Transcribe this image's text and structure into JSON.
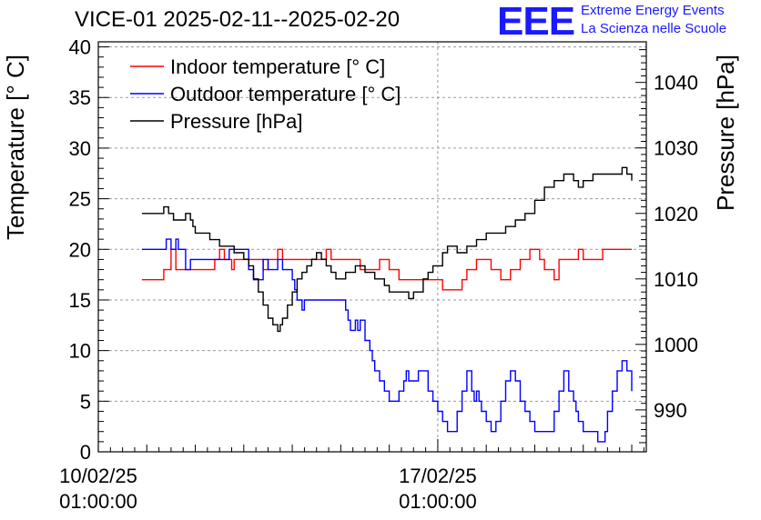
{
  "title": "VICE-01 2025-02-11--2025-02-20",
  "logo": {
    "mark": "EEE",
    "line1": "Extreme Energy Events",
    "line2": "La Scienza nelle Scuole",
    "color": "#1a1aff"
  },
  "chart_data": {
    "type": "line",
    "title": "VICE-01 2025-02-11--2025-02-20",
    "x_unit": "days since 10/02/25 01:00:00",
    "xlim": [
      0,
      11.3
    ],
    "x_ticks": [
      {
        "x": 0,
        "label": [
          "10/02/25",
          "01:00:00"
        ]
      },
      {
        "x": 7,
        "label": [
          "17/02/25",
          "01:00:00"
        ]
      }
    ],
    "ylabel": "Temperature [° C]",
    "ylim": [
      0,
      40.5
    ],
    "y_ticks": [
      0,
      5,
      10,
      15,
      20,
      25,
      30,
      35,
      40
    ],
    "y2label": "Pressure [hPa]",
    "y2lim": [
      983.6,
      1046.2
    ],
    "y2_ticks": [
      990,
      1000,
      1010,
      1020,
      1030,
      1040
    ],
    "grid": true,
    "legend_position": "top-left",
    "series": [
      {
        "name": "Indoor temperature [° C]",
        "color": "#ff0000",
        "axis": "left",
        "x": [
          0.9,
          1.2,
          1.35,
          1.5,
          1.6,
          2.3,
          2.4,
          2.5,
          2.6,
          2.75,
          2.8,
          3.2,
          3.4,
          3.5,
          3.7,
          3.8,
          4.5,
          4.7,
          4.8,
          5.2,
          5.4,
          5.6,
          5.8,
          6.0,
          6.1,
          6.2,
          6.5,
          6.6,
          6.8,
          7.1,
          7.2,
          7.5,
          7.6,
          7.8,
          8.1,
          8.3,
          8.5,
          8.7,
          8.9,
          9.1,
          9.2,
          9.4,
          9.5,
          9.9,
          10.0,
          10.3,
          10.4,
          10.9,
          11.0
        ],
        "y": [
          17,
          17,
          18,
          20,
          18,
          18,
          19,
          20,
          19,
          18,
          19,
          19,
          18,
          19,
          20,
          19,
          19,
          20,
          19,
          19,
          18,
          18,
          19,
          18,
          18,
          17,
          17,
          17,
          17,
          16,
          16,
          17,
          18,
          19,
          18,
          17,
          18,
          19,
          20,
          19,
          18,
          17,
          19,
          20,
          19,
          19,
          20,
          20,
          20
        ]
      },
      {
        "name": "Outdoor temperature [° C]",
        "color": "#0000ff",
        "axis": "left",
        "x": [
          0.9,
          1.3,
          1.4,
          1.5,
          1.6,
          1.65,
          1.8,
          1.9,
          2.0,
          2.5,
          2.7,
          3.0,
          3.1,
          3.2,
          3.4,
          3.5,
          3.7,
          3.8,
          4.0,
          4.05,
          4.1,
          4.2,
          4.25,
          4.3,
          4.4,
          4.7,
          5.0,
          5.1,
          5.15,
          5.2,
          5.3,
          5.35,
          5.4,
          5.5,
          5.6,
          5.65,
          5.7,
          5.8,
          5.9,
          6.0,
          6.1,
          6.2,
          6.3,
          6.35,
          6.4,
          6.5,
          6.6,
          6.8,
          6.9,
          7.0,
          7.1,
          7.2,
          7.3,
          7.4,
          7.5,
          7.6,
          7.7,
          7.75,
          7.8,
          7.85,
          7.9,
          8.0,
          8.1,
          8.2,
          8.3,
          8.4,
          8.5,
          8.6,
          8.7,
          8.8,
          8.9,
          9.0,
          9.1,
          9.3,
          9.4,
          9.5,
          9.6,
          9.7,
          9.8,
          9.85,
          9.9,
          10.0,
          10.1,
          10.2,
          10.3,
          10.4,
          10.45,
          10.5,
          10.6,
          10.7,
          10.8,
          10.9,
          11.0
        ],
        "y": [
          20,
          20,
          21,
          20,
          21,
          20,
          18,
          19,
          19,
          19,
          20,
          20,
          18,
          17,
          19,
          18,
          19,
          18,
          17,
          16,
          15,
          14,
          15,
          15,
          15,
          15,
          15,
          14,
          13,
          12,
          13,
          12,
          13,
          11,
          10,
          9,
          8,
          7,
          6,
          5,
          5,
          6,
          7,
          8,
          7,
          7,
          8,
          6,
          5,
          4,
          3,
          2,
          2,
          4,
          6,
          8,
          6,
          5,
          6,
          5,
          4,
          3,
          2,
          3,
          5,
          7,
          8,
          7,
          5,
          4,
          3,
          2,
          2,
          2,
          4,
          6,
          8,
          6,
          5,
          4,
          3,
          2,
          2,
          2,
          1,
          1,
          2,
          4,
          6,
          8,
          9,
          8,
          6
        ]
      },
      {
        "name": "Pressure [hPa]",
        "color": "#000000",
        "axis": "right",
        "x": [
          0.9,
          1.2,
          1.35,
          1.45,
          1.55,
          1.7,
          1.8,
          1.9,
          1.95,
          2.0,
          2.3,
          2.5,
          2.7,
          2.8,
          2.9,
          3.0,
          3.1,
          3.2,
          3.3,
          3.4,
          3.5,
          3.6,
          3.7,
          3.75,
          3.8,
          3.9,
          4.0,
          4.1,
          4.2,
          4.3,
          4.4,
          4.5,
          4.6,
          4.7,
          4.8,
          4.9,
          5.1,
          5.3,
          5.5,
          5.7,
          5.9,
          6.0,
          6.2,
          6.4,
          6.5,
          6.7,
          6.8,
          6.9,
          7.0,
          7.1,
          7.2,
          7.4,
          7.6,
          7.8,
          8.0,
          8.2,
          8.4,
          8.6,
          8.8,
          9.0,
          9.2,
          9.4,
          9.6,
          9.8,
          9.9,
          10.0,
          10.2,
          10.4,
          10.6,
          10.8,
          10.9,
          11.0
        ],
        "y": [
          1020,
          1020,
          1021,
          1020,
          1019,
          1019,
          1020,
          1019,
          1018,
          1017,
          1016,
          1015,
          1015,
          1014,
          1014,
          1013,
          1012,
          1010,
          1008,
          1006,
          1004,
          1003,
          1002,
          1003,
          1004,
          1006,
          1008,
          1010,
          1011,
          1012,
          1013,
          1014,
          1013,
          1012,
          1011,
          1010,
          1011,
          1012,
          1011,
          1010,
          1009,
          1008,
          1008,
          1007,
          1008,
          1010,
          1011,
          1012,
          1012,
          1014,
          1015,
          1014,
          1015,
          1016,
          1017,
          1017,
          1018,
          1019,
          1020,
          1022,
          1024,
          1025,
          1026,
          1025,
          1024,
          1025,
          1026,
          1026,
          1026,
          1027,
          1026,
          1025
        ]
      }
    ]
  }
}
